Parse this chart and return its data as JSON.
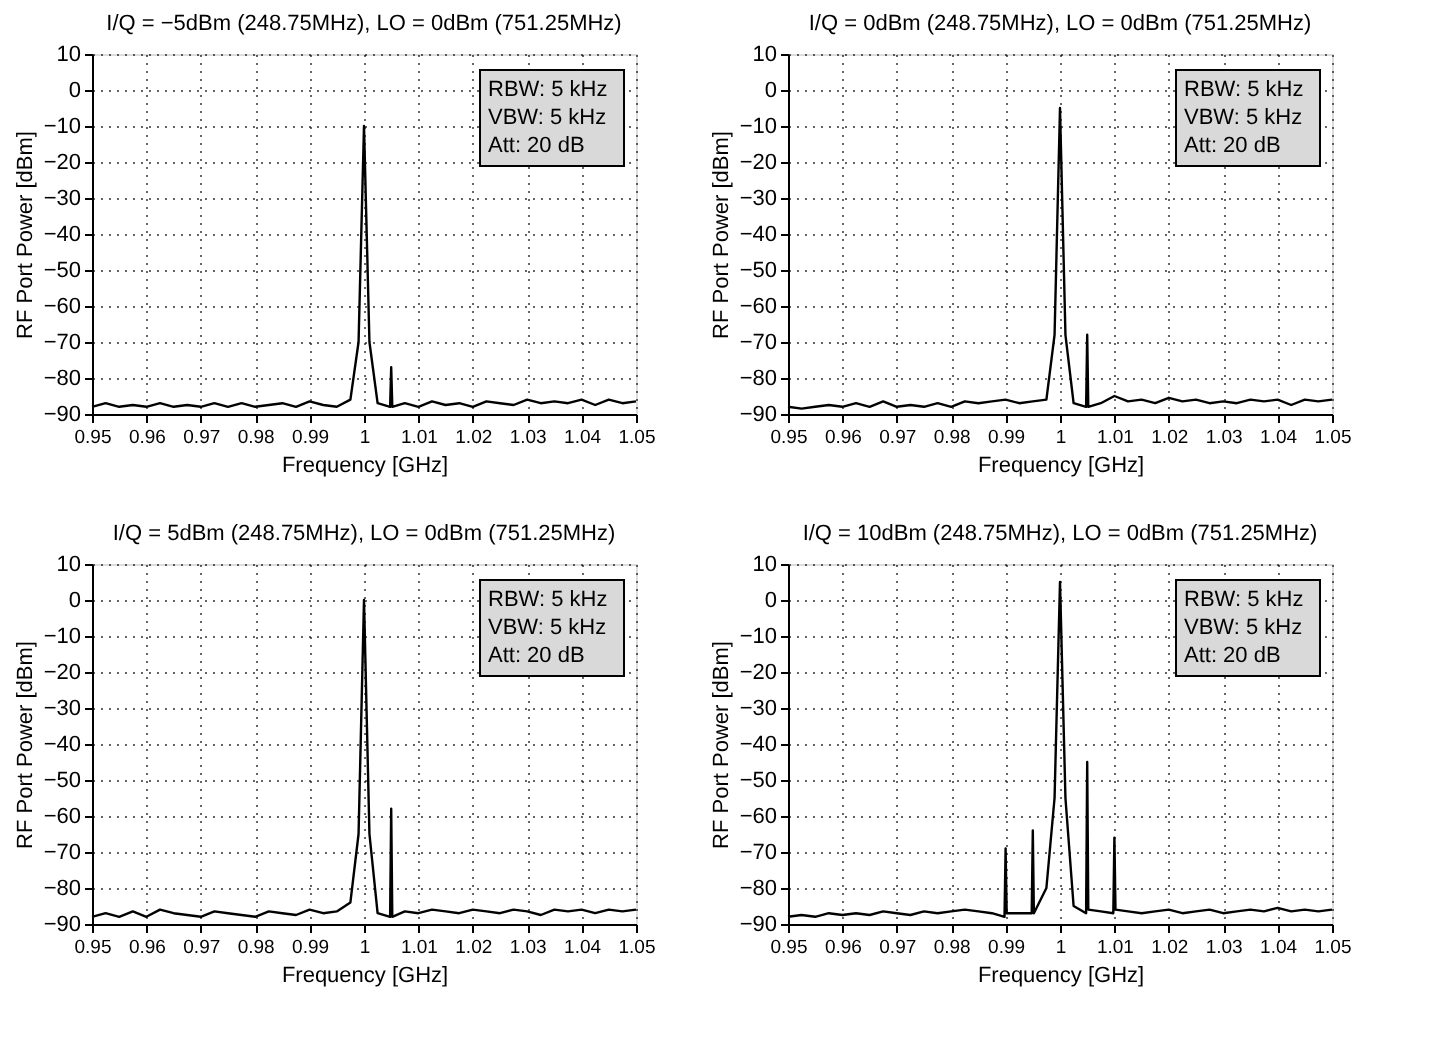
{
  "chart_data": [
    {
      "type": "line",
      "title": "I/Q = −5dBm (248.75MHz), LO = 0dBm (751.25MHz)",
      "xlabel": "Frequency [GHz]",
      "ylabel": "RF Port Power [dBm]",
      "annotations": [
        "RBW: 5 kHz",
        "VBW: 5 kHz",
        "Att: 20 dB"
      ],
      "xlim": [
        0.95,
        1.05
      ],
      "ylim": [
        -90,
        10
      ],
      "xticks": [
        0.95,
        0.96,
        0.97,
        0.98,
        0.99,
        1,
        1.01,
        1.02,
        1.03,
        1.04,
        1.05
      ],
      "yticks": [
        -90,
        -80,
        -70,
        -60,
        -50,
        -40,
        -30,
        -20,
        -10,
        0,
        10
      ],
      "grid": true,
      "marker": "none",
      "line_style": "solid",
      "series": [
        {
          "color": "#000000",
          "x": [
            0.95,
            0.9525,
            0.955,
            0.9575,
            0.96,
            0.9625,
            0.965,
            0.9675,
            0.97,
            0.9725,
            0.975,
            0.9775,
            0.98,
            0.9825,
            0.985,
            0.9875,
            0.99,
            0.9925,
            0.995,
            0.9975,
            0.999,
            1.0,
            1.001,
            1.0025,
            1.0048,
            1.005,
            1.0052,
            1.0075,
            1.01,
            1.0125,
            1.015,
            1.0175,
            1.02,
            1.0225,
            1.025,
            1.0275,
            1.03,
            1.0325,
            1.035,
            1.0375,
            1.04,
            1.0425,
            1.045,
            1.0475,
            1.05
          ],
          "values": [
            -88,
            -87,
            -88,
            -87.5,
            -88,
            -87,
            -88,
            -87.5,
            -88,
            -87,
            -88,
            -87,
            -88,
            -87.5,
            -87,
            -88,
            -86.5,
            -87.5,
            -88,
            -86,
            -70,
            -10,
            -70,
            -87,
            -88,
            -77,
            -88,
            -87,
            -88,
            -86.5,
            -87.5,
            -87,
            -88,
            -86.5,
            -87,
            -87.5,
            -86,
            -87,
            -86.5,
            -87,
            -86,
            -87.5,
            -86,
            -87,
            -86.5
          ]
        }
      ]
    },
    {
      "type": "line",
      "title": "I/Q = 0dBm (248.75MHz), LO = 0dBm (751.25MHz)",
      "xlabel": "Frequency [GHz]",
      "ylabel": "RF Port Power [dBm]",
      "annotations": [
        "RBW: 5 kHz",
        "VBW: 5 kHz",
        "Att: 20 dB"
      ],
      "xlim": [
        0.95,
        1.05
      ],
      "ylim": [
        -90,
        10
      ],
      "xticks": [
        0.95,
        0.96,
        0.97,
        0.98,
        0.99,
        1,
        1.01,
        1.02,
        1.03,
        1.04,
        1.05
      ],
      "yticks": [
        -90,
        -80,
        -70,
        -60,
        -50,
        -40,
        -30,
        -20,
        -10,
        0,
        10
      ],
      "grid": true,
      "marker": "none",
      "line_style": "solid",
      "series": [
        {
          "color": "#000000",
          "x": [
            0.95,
            0.9525,
            0.955,
            0.9575,
            0.96,
            0.9625,
            0.965,
            0.9675,
            0.97,
            0.9725,
            0.975,
            0.9775,
            0.98,
            0.9825,
            0.985,
            0.9875,
            0.99,
            0.9925,
            0.995,
            0.9975,
            0.999,
            1.0,
            1.001,
            1.0025,
            1.0048,
            1.005,
            1.0052,
            1.0075,
            1.01,
            1.0125,
            1.015,
            1.0175,
            1.02,
            1.0225,
            1.025,
            1.0275,
            1.03,
            1.0325,
            1.035,
            1.0375,
            1.04,
            1.0425,
            1.045,
            1.0475,
            1.05
          ],
          "values": [
            -88,
            -88.5,
            -88,
            -87.5,
            -88,
            -87,
            -88,
            -86.5,
            -88,
            -87.5,
            -88,
            -87,
            -88,
            -86.5,
            -87,
            -86.5,
            -86,
            -87,
            -86.5,
            -86,
            -68,
            -5,
            -68,
            -87,
            -88,
            -68,
            -88,
            -87,
            -85,
            -86.5,
            -86,
            -87,
            -85.5,
            -86.5,
            -86,
            -87,
            -86.5,
            -87,
            -86,
            -86.5,
            -86,
            -87.5,
            -86,
            -86.5,
            -86
          ]
        }
      ]
    },
    {
      "type": "line",
      "title": "I/Q = 5dBm (248.75MHz), LO = 0dBm (751.25MHz)",
      "xlabel": "Frequency [GHz]",
      "ylabel": "RF Port Power [dBm]",
      "annotations": [
        "RBW: 5 kHz",
        "VBW: 5 kHz",
        "Att: 20 dB"
      ],
      "xlim": [
        0.95,
        1.05
      ],
      "ylim": [
        -90,
        10
      ],
      "xticks": [
        0.95,
        0.96,
        0.97,
        0.98,
        0.99,
        1,
        1.01,
        1.02,
        1.03,
        1.04,
        1.05
      ],
      "yticks": [
        -90,
        -80,
        -70,
        -60,
        -50,
        -40,
        -30,
        -20,
        -10,
        0,
        10
      ],
      "grid": true,
      "marker": "none",
      "line_style": "solid",
      "series": [
        {
          "color": "#000000",
          "x": [
            0.95,
            0.9525,
            0.955,
            0.9575,
            0.96,
            0.9625,
            0.965,
            0.9675,
            0.97,
            0.9725,
            0.975,
            0.9775,
            0.98,
            0.9825,
            0.985,
            0.9875,
            0.99,
            0.9925,
            0.995,
            0.9975,
            0.999,
            1.0,
            1.001,
            1.0025,
            1.0048,
            1.005,
            1.0052,
            1.0075,
            1.01,
            1.0125,
            1.015,
            1.0175,
            1.02,
            1.0225,
            1.025,
            1.0275,
            1.03,
            1.0325,
            1.035,
            1.0375,
            1.04,
            1.0425,
            1.045,
            1.0475,
            1.05
          ],
          "values": [
            -88,
            -87,
            -88,
            -86.5,
            -88,
            -86,
            -87,
            -87.5,
            -88,
            -86.5,
            -87,
            -87.5,
            -88,
            -86.5,
            -87,
            -87.5,
            -86,
            -87,
            -86.5,
            -84,
            -65,
            0,
            -65,
            -87,
            -88,
            -58,
            -88,
            -86.5,
            -87,
            -86,
            -86.5,
            -87,
            -86,
            -86.5,
            -87,
            -86,
            -86.5,
            -87.5,
            -86,
            -86.5,
            -86,
            -87,
            -86,
            -86.5,
            -86
          ]
        }
      ]
    },
    {
      "type": "line",
      "title": "I/Q = 10dBm (248.75MHz), LO = 0dBm (751.25MHz)",
      "xlabel": "Frequency [GHz]",
      "ylabel": "RF Port Power [dBm]",
      "annotations": [
        "RBW: 5 kHz",
        "VBW: 5 kHz",
        "Att: 20 dB"
      ],
      "xlim": [
        0.95,
        1.05
      ],
      "ylim": [
        -90,
        10
      ],
      "xticks": [
        0.95,
        0.96,
        0.97,
        0.98,
        0.99,
        1,
        1.01,
        1.02,
        1.03,
        1.04,
        1.05
      ],
      "yticks": [
        -90,
        -80,
        -70,
        -60,
        -50,
        -40,
        -30,
        -20,
        -10,
        0,
        10
      ],
      "grid": true,
      "marker": "none",
      "line_style": "solid",
      "series": [
        {
          "color": "#000000",
          "x": [
            0.95,
            0.9525,
            0.955,
            0.9575,
            0.96,
            0.9625,
            0.965,
            0.9675,
            0.97,
            0.9725,
            0.975,
            0.9775,
            0.98,
            0.9825,
            0.985,
            0.9875,
            0.9898,
            0.99,
            0.9902,
            0.9925,
            0.9948,
            0.995,
            0.9952,
            0.9975,
            0.999,
            1.0,
            1.001,
            1.0025,
            1.0048,
            1.005,
            1.0052,
            1.0075,
            1.0098,
            1.01,
            1.0102,
            1.0125,
            1.015,
            1.0175,
            1.02,
            1.0225,
            1.025,
            1.0275,
            1.03,
            1.0325,
            1.035,
            1.0375,
            1.04,
            1.0425,
            1.045,
            1.0475,
            1.05
          ],
          "values": [
            -88,
            -87.5,
            -88,
            -87,
            -87.5,
            -87,
            -87.5,
            -86.5,
            -87,
            -87.5,
            -86.5,
            -87,
            -86.5,
            -86,
            -86.5,
            -87,
            -88,
            -69,
            -87,
            -87,
            -87,
            -64,
            -87,
            -80,
            -55,
            5,
            -55,
            -85,
            -87,
            -45,
            -86,
            -86.5,
            -87,
            -66,
            -86,
            -86.5,
            -87,
            -86.5,
            -86,
            -87,
            -86.5,
            -86,
            -87,
            -86.5,
            -86,
            -86.5,
            -85.5,
            -86.5,
            -86,
            -86.5,
            -86
          ]
        }
      ]
    }
  ]
}
